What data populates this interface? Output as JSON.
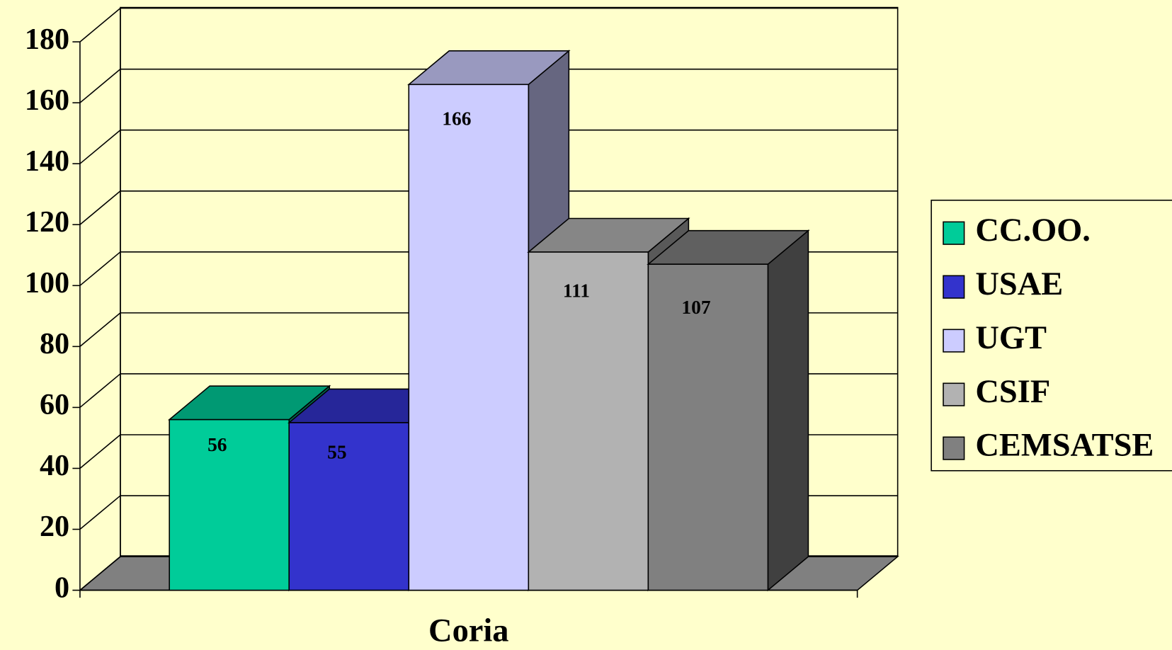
{
  "chart_data": {
    "type": "bar3d",
    "categories": [
      "Coria"
    ],
    "series": [
      {
        "name": "CC.OO.",
        "color": "#00cc99",
        "values": [
          56
        ]
      },
      {
        "name": "USAE",
        "color": "#3333cc",
        "values": [
          55
        ]
      },
      {
        "name": "UGT",
        "color": "#ccccff",
        "values": [
          166
        ]
      },
      {
        "name": "CSIF",
        "color": "#b2b2b2",
        "values": [
          111
        ]
      },
      {
        "name": "CEMSATSE",
        "color": "#808080",
        "values": [
          107
        ]
      }
    ],
    "ylim": [
      0,
      180
    ],
    "yticks": [
      0,
      20,
      40,
      60,
      80,
      100,
      120,
      140,
      160,
      180
    ],
    "grid": true,
    "legend": "right",
    "data_labels": true
  }
}
